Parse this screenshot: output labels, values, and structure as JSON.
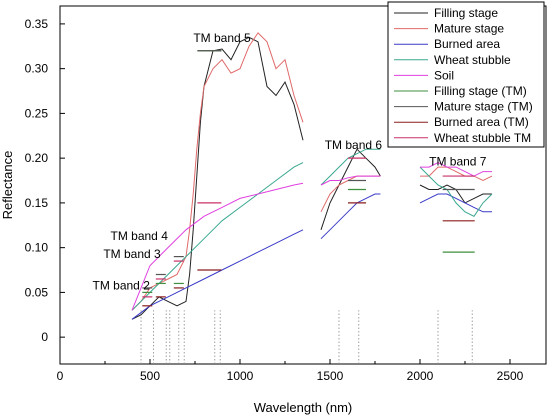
{
  "chart_data": {
    "type": "line",
    "xlabel": "Wavelength (nm)",
    "ylabel": "Reflectance",
    "xlim": [
      0,
      2700
    ],
    "ylim": [
      -0.03,
      0.37
    ],
    "xticks": [
      0,
      500,
      1000,
      1500,
      2000,
      2500
    ],
    "yticks": [
      0,
      0.05,
      0.1,
      0.15,
      0.2,
      0.25,
      0.3,
      0.35
    ],
    "ytick_labels": [
      "0",
      "0.05",
      "0.10",
      "0.15",
      "0.20",
      "0.25",
      "0.30",
      "0.35"
    ],
    "grid": false,
    "legend_position": "top-right",
    "series": [
      {
        "name": "Filling stage",
        "color": "#222222",
        "kind": "spectrum",
        "segments": [
          {
            "x": [
              400,
              450,
              500,
              550,
              600,
              650,
              700,
              720,
              740,
              760,
              780,
              800,
              850,
              900,
              950,
              1000,
              1050,
              1100,
              1150,
              1200,
              1250,
              1300,
              1350
            ],
            "y": [
              0.02,
              0.025,
              0.035,
              0.045,
              0.04,
              0.035,
              0.04,
              0.07,
              0.12,
              0.18,
              0.24,
              0.28,
              0.32,
              0.322,
              0.31,
              0.33,
              0.335,
              0.33,
              0.28,
              0.27,
              0.285,
              0.26,
              0.22
            ]
          },
          {
            "x": [
              1450,
              1500,
              1550,
              1600,
              1650,
              1700,
              1750,
              1780
            ],
            "y": [
              0.12,
              0.15,
              0.17,
              0.19,
              0.21,
              0.2,
              0.19,
              0.18
            ]
          },
          {
            "x": [
              2000,
              2050,
              2100,
              2150,
              2200,
              2250,
              2300,
              2350,
              2400
            ],
            "y": [
              0.17,
              0.165,
              0.165,
              0.17,
              0.165,
              0.15,
              0.155,
              0.16,
              0.16
            ]
          }
        ]
      },
      {
        "name": "Mature stage",
        "color": "#e06a6a",
        "kind": "spectrum",
        "segments": [
          {
            "x": [
              400,
              450,
              500,
              550,
              600,
              650,
              700,
              720,
              740,
              760,
              780,
              800,
              850,
              900,
              950,
              1000,
              1050,
              1100,
              1150,
              1200,
              1250,
              1300,
              1350
            ],
            "y": [
              0.03,
              0.04,
              0.055,
              0.06,
              0.065,
              0.07,
              0.09,
              0.12,
              0.16,
              0.21,
              0.25,
              0.28,
              0.3,
              0.31,
              0.295,
              0.3,
              0.325,
              0.34,
              0.33,
              0.3,
              0.31,
              0.27,
              0.24
            ]
          },
          {
            "x": [
              1450,
              1500,
              1550,
              1600,
              1650,
              1700,
              1750,
              1780
            ],
            "y": [
              0.14,
              0.16,
              0.17,
              0.175,
              0.18,
              0.18,
              0.18,
              0.18
            ]
          },
          {
            "x": [
              2000,
              2050,
              2100,
              2150,
              2200,
              2250,
              2300,
              2350,
              2400
            ],
            "y": [
              0.18,
              0.18,
              0.19,
              0.19,
              0.185,
              0.18,
              0.18,
              0.175,
              0.18
            ]
          }
        ]
      },
      {
        "name": "Burned area",
        "color": "#3a3ac8",
        "kind": "spectrum",
        "segments": [
          {
            "x": [
              400,
              500,
              600,
              700,
              800,
              900,
              1000,
              1100,
              1200,
              1300,
              1350
            ],
            "y": [
              0.02,
              0.035,
              0.045,
              0.055,
              0.065,
              0.075,
              0.085,
              0.095,
              0.105,
              0.115,
              0.12
            ]
          },
          {
            "x": [
              1450,
              1500,
              1550,
              1600,
              1650,
              1700,
              1750,
              1780
            ],
            "y": [
              0.11,
              0.12,
              0.13,
              0.14,
              0.15,
              0.155,
              0.16,
              0.16
            ]
          },
          {
            "x": [
              2000,
              2050,
              2100,
              2150,
              2200,
              2250,
              2300,
              2350,
              2400
            ],
            "y": [
              0.15,
              0.155,
              0.16,
              0.16,
              0.155,
              0.15,
              0.145,
              0.14,
              0.14
            ]
          }
        ]
      },
      {
        "name": "Wheat stubble",
        "color": "#3aa890",
        "kind": "spectrum",
        "segments": [
          {
            "x": [
              400,
              500,
              600,
              700,
              800,
              900,
              1000,
              1100,
              1200,
              1300,
              1350
            ],
            "y": [
              0.03,
              0.05,
              0.07,
              0.09,
              0.11,
              0.13,
              0.145,
              0.16,
              0.175,
              0.19,
              0.195
            ]
          },
          {
            "x": [
              1450,
              1500,
              1550,
              1600,
              1650,
              1700,
              1750,
              1780
            ],
            "y": [
              0.17,
              0.18,
              0.19,
              0.2,
              0.205,
              0.21,
              0.21,
              0.21
            ]
          },
          {
            "x": [
              2000,
              2050,
              2100,
              2150,
              2200,
              2250,
              2300,
              2350,
              2400
            ],
            "y": [
              0.19,
              0.18,
              0.17,
              0.165,
              0.15,
              0.14,
              0.135,
              0.15,
              0.16
            ]
          }
        ]
      },
      {
        "name": "Soil",
        "color": "#e040e0",
        "kind": "spectrum",
        "segments": [
          {
            "x": [
              400,
              500,
              600,
              700,
              800,
              900,
              1000,
              1100,
              1200,
              1300,
              1350
            ],
            "y": [
              0.03,
              0.08,
              0.1,
              0.12,
              0.135,
              0.145,
              0.155,
              0.16,
              0.165,
              0.17,
              0.172
            ]
          },
          {
            "x": [
              1450,
              1500,
              1550,
              1600,
              1650,
              1700,
              1750,
              1780
            ],
            "y": [
              0.17,
              0.175,
              0.175,
              0.178,
              0.18,
              0.18,
              0.18,
              0.18
            ]
          },
          {
            "x": [
              2000,
              2050,
              2100,
              2150,
              2200,
              2250,
              2300,
              2350,
              2400
            ],
            "y": [
              0.19,
              0.19,
              0.195,
              0.19,
              0.19,
              0.185,
              0.18,
              0.185,
              0.185
            ]
          }
        ]
      },
      {
        "name": "Filling stage (TM)",
        "color": "#3f8f3f",
        "kind": "tm",
        "x": [
          485,
          560,
          660,
          830,
          1650,
          2215
        ],
        "y": [
          0.05,
          0.06,
          0.06,
          0.32,
          0.165,
          0.095
        ]
      },
      {
        "name": "Mature stage (TM)",
        "color": "#555555",
        "kind": "tm",
        "x": [
          485,
          560,
          660,
          830,
          1650,
          2215
        ],
        "y": [
          0.055,
          0.07,
          0.09,
          0.32,
          0.175,
          0.165
        ]
      },
      {
        "name": "Burned area (TM)",
        "color": "#8a1e1e",
        "kind": "tm",
        "x": [
          485,
          560,
          660,
          830,
          1650,
          2215
        ],
        "y": [
          0.035,
          0.045,
          0.055,
          0.075,
          0.15,
          0.13
        ]
      },
      {
        "name": "Wheat stubble TM",
        "color": "#c8306a",
        "kind": "tm",
        "x": [
          485,
          560,
          660,
          830,
          1650,
          2215
        ],
        "y": [
          0.045,
          0.065,
          0.085,
          0.15,
          0.2,
          0.18
        ]
      }
    ],
    "annotations": [
      {
        "text": "TM band 2",
        "x": 340,
        "y": 0.053
      },
      {
        "text": "TM band 3",
        "x": 400,
        "y": 0.0885
      },
      {
        "text": "TM band 4",
        "x": 440,
        "y": 0.1085
      },
      {
        "text": "TM band 5",
        "x": 900,
        "y": 0.33
      },
      {
        "text": "TM band 6",
        "x": 1630,
        "y": 0.21
      },
      {
        "text": "TM band 7",
        "x": 2210,
        "y": 0.192
      }
    ],
    "band_lines_x": [
      450,
      520,
      590,
      610,
      660,
      690,
      860,
      890,
      1550,
      1660,
      2100,
      2290
    ]
  }
}
